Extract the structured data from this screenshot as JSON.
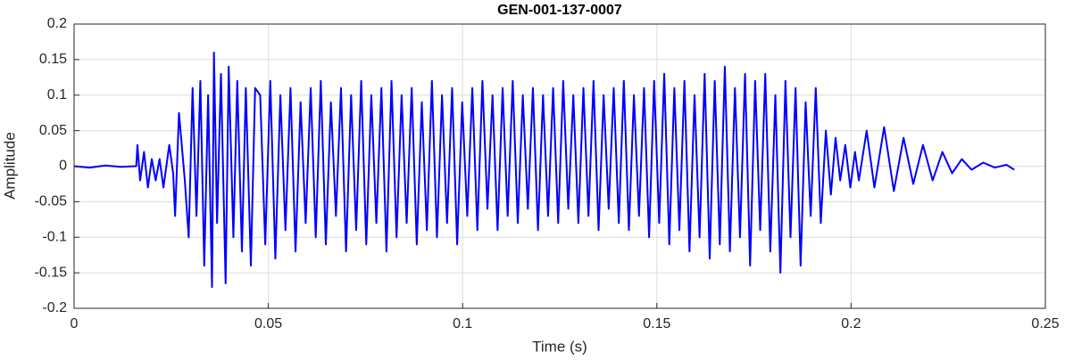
{
  "chart_data": {
    "type": "line",
    "title": "GEN-001-137-0007",
    "x_label": "Time (s)",
    "y_label": "Amplitude",
    "xlim": [
      0,
      0.25
    ],
    "xticks": [
      0,
      0.05,
      0.1,
      0.15,
      0.2,
      0.25
    ],
    "ylim": [
      -0.2,
      0.2
    ],
    "yticks": [
      -0.2,
      -0.15,
      -0.1,
      -0.05,
      0,
      0.05,
      0.1,
      0.15,
      0.2
    ],
    "grid": true,
    "x": [
      0,
      0.004,
      0.008,
      0.012,
      0.016,
      0.0163,
      0.017,
      0.018,
      0.019,
      0.02,
      0.021,
      0.022,
      0.023,
      0.0245,
      0.0255,
      0.026,
      0.027,
      0.0285,
      0.0295,
      0.0305,
      0.0315,
      0.0325,
      0.0335,
      0.0345,
      0.0355,
      0.036,
      0.0368,
      0.0378,
      0.039,
      0.0398,
      0.041,
      0.042,
      0.0432,
      0.0442,
      0.0455,
      0.0466,
      0.0479,
      0.0492,
      0.0505,
      0.0518,
      0.0531,
      0.0544,
      0.0557,
      0.057,
      0.0583,
      0.0596,
      0.0609,
      0.0622,
      0.0635,
      0.0648,
      0.0661,
      0.0674,
      0.0687,
      0.07,
      0.0713,
      0.0726,
      0.0739,
      0.0752,
      0.0765,
      0.0778,
      0.0791,
      0.0804,
      0.0817,
      0.083,
      0.0843,
      0.0856,
      0.0869,
      0.0882,
      0.0895,
      0.0908,
      0.0921,
      0.0934,
      0.0947,
      0.096,
      0.0973,
      0.0986,
      0.0999,
      0.1012,
      0.1025,
      0.1038,
      0.1051,
      0.1064,
      0.1077,
      0.109,
      0.1103,
      0.1116,
      0.1129,
      0.1142,
      0.1155,
      0.1168,
      0.1181,
      0.1194,
      0.1207,
      0.122,
      0.1233,
      0.1246,
      0.1259,
      0.1272,
      0.1285,
      0.1298,
      0.1311,
      0.1324,
      0.1337,
      0.135,
      0.1363,
      0.1376,
      0.1389,
      0.1402,
      0.1415,
      0.1428,
      0.1441,
      0.1454,
      0.1467,
      0.148,
      0.1493,
      0.1506,
      0.1519,
      0.1532,
      0.1545,
      0.1558,
      0.1571,
      0.1584,
      0.1597,
      0.161,
      0.1623,
      0.1636,
      0.1649,
      0.1662,
      0.1675,
      0.1688,
      0.1701,
      0.1714,
      0.1727,
      0.174,
      0.1753,
      0.1766,
      0.1779,
      0.1792,
      0.1805,
      0.1818,
      0.1831,
      0.1844,
      0.1857,
      0.187,
      0.1883,
      0.1896,
      0.1909,
      0.1922,
      0.1935,
      0.1948,
      0.196,
      0.1972,
      0.1985,
      0.1998,
      0.201,
      0.202,
      0.204,
      0.206,
      0.2085,
      0.211,
      0.2135,
      0.216,
      0.2185,
      0.221,
      0.2235,
      0.226,
      0.2285,
      0.231,
      0.234,
      0.237,
      0.24,
      0.242
    ],
    "series": [
      {
        "name": "Amplitude",
        "color": "#0000ff",
        "values": [
          0,
          -0.002,
          0.001,
          -0.001,
          0,
          0.03,
          -0.02,
          0.02,
          -0.03,
          0.01,
          -0.02,
          0.01,
          -0.03,
          0.03,
          -0.01,
          -0.07,
          0.075,
          -0.02,
          -0.1,
          0.11,
          -0.07,
          0.12,
          -0.14,
          0.1,
          -0.17,
          0.16,
          -0.08,
          0.13,
          -0.165,
          0.14,
          -0.1,
          0.12,
          -0.12,
          0.11,
          -0.14,
          0.11,
          0.1,
          -0.11,
          0.12,
          -0.13,
          0.1,
          -0.09,
          0.11,
          -0.12,
          0.09,
          -0.08,
          0.11,
          -0.1,
          0.12,
          -0.11,
          0.09,
          -0.07,
          0.11,
          -0.12,
          0.1,
          -0.09,
          0.12,
          -0.11,
          0.1,
          -0.08,
          0.11,
          -0.12,
          0.12,
          -0.1,
          0.1,
          -0.08,
          0.11,
          -0.11,
          0.09,
          -0.09,
          0.12,
          -0.1,
          0.1,
          -0.08,
          0.11,
          -0.11,
          0.09,
          -0.07,
          0.11,
          -0.09,
          0.12,
          -0.06,
          0.1,
          -0.09,
          0.11,
          -0.07,
          0.12,
          -0.08,
          0.1,
          -0.06,
          0.11,
          -0.09,
          0.1,
          -0.07,
          0.11,
          -0.08,
          0.12,
          -0.06,
          0.1,
          -0.08,
          0.11,
          -0.07,
          0.12,
          -0.09,
          0.1,
          -0.06,
          0.11,
          -0.08,
          0.12,
          -0.09,
          0.1,
          -0.07,
          0.11,
          -0.1,
          0.12,
          -0.08,
          0.13,
          -0.11,
          0.11,
          -0.09,
          0.12,
          -0.12,
          0.1,
          -0.1,
          0.13,
          -0.13,
          0.12,
          -0.11,
          0.14,
          -0.12,
          0.11,
          -0.1,
          0.13,
          -0.14,
          0.12,
          -0.09,
          0.13,
          -0.12,
          0.1,
          -0.15,
          0.12,
          -0.1,
          0.11,
          -0.14,
          0.09,
          -0.07,
          0.11,
          -0.08,
          0.05,
          -0.04,
          0.04,
          -0.02,
          0.03,
          -0.03,
          0.02,
          -0.02,
          0.05,
          -0.03,
          0.055,
          -0.035,
          0.04,
          -0.025,
          0.03,
          -0.02,
          0.02,
          -0.01,
          0.01,
          -0.005,
          0.005,
          -0.002,
          0.002,
          -0.005
        ]
      }
    ]
  }
}
